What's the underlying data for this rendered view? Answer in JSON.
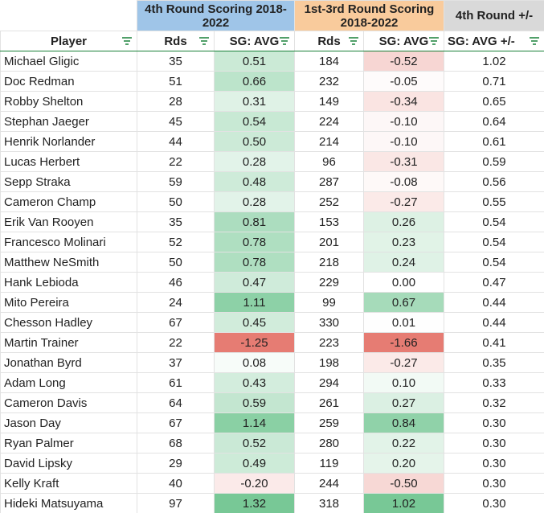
{
  "table": {
    "groups": [
      "4th Round Scoring 2018-2022",
      "1st-3rd Round Scoring 2018-2022",
      "4th Round +/-"
    ],
    "columns": [
      "Player",
      "Rds",
      "SG: AVG",
      "Rds",
      "SG: AVG",
      "SG: AVG +/-"
    ],
    "rows": [
      [
        "Michael Gligic",
        "35",
        "0.51",
        "184",
        "-0.52",
        "1.02"
      ],
      [
        "Doc Redman",
        "51",
        "0.66",
        "232",
        "-0.05",
        "0.71"
      ],
      [
        "Robby Shelton",
        "28",
        "0.31",
        "149",
        "-0.34",
        "0.65"
      ],
      [
        "Stephan Jaeger",
        "45",
        "0.54",
        "224",
        "-0.10",
        "0.64"
      ],
      [
        "Henrik Norlander",
        "44",
        "0.50",
        "214",
        "-0.10",
        "0.61"
      ],
      [
        "Lucas Herbert",
        "22",
        "0.28",
        "96",
        "-0.31",
        "0.59"
      ],
      [
        "Sepp Straka",
        "59",
        "0.48",
        "287",
        "-0.08",
        "0.56"
      ],
      [
        "Cameron Champ",
        "50",
        "0.28",
        "252",
        "-0.27",
        "0.55"
      ],
      [
        "Erik Van Rooyen",
        "35",
        "0.81",
        "153",
        "0.26",
        "0.54"
      ],
      [
        "Francesco Molinari",
        "52",
        "0.78",
        "201",
        "0.23",
        "0.54"
      ],
      [
        "Matthew NeSmith",
        "50",
        "0.78",
        "218",
        "0.24",
        "0.54"
      ],
      [
        "Hank Lebioda",
        "46",
        "0.47",
        "229",
        "0.00",
        "0.47"
      ],
      [
        "Mito Pereira",
        "24",
        "1.11",
        "99",
        "0.67",
        "0.44"
      ],
      [
        "Chesson Hadley",
        "67",
        "0.45",
        "330",
        "0.01",
        "0.44"
      ],
      [
        "Martin Trainer",
        "22",
        "-1.25",
        "223",
        "-1.66",
        "0.41"
      ],
      [
        "Jonathan Byrd",
        "37",
        "0.08",
        "198",
        "-0.27",
        "0.35"
      ],
      [
        "Adam Long",
        "61",
        "0.43",
        "294",
        "0.10",
        "0.33"
      ],
      [
        "Cameron Davis",
        "64",
        "0.59",
        "261",
        "0.27",
        "0.32"
      ],
      [
        "Jason Day",
        "67",
        "1.14",
        "259",
        "0.84",
        "0.30"
      ],
      [
        "Ryan Palmer",
        "68",
        "0.52",
        "280",
        "0.22",
        "0.30"
      ],
      [
        "David Lipsky",
        "29",
        "0.49",
        "119",
        "0.20",
        "0.30"
      ],
      [
        "Kelly Kraft",
        "40",
        "-0.20",
        "244",
        "-0.50",
        "0.30"
      ],
      [
        "Hideki Matsuyama",
        "97",
        "1.32",
        "318",
        "1.02",
        "0.30"
      ]
    ]
  }
}
